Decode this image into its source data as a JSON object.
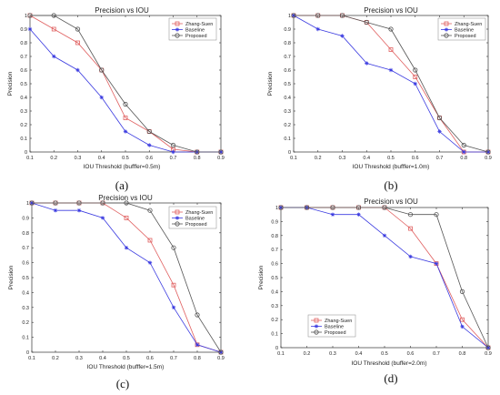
{
  "colors": {
    "zhang": "#e06060",
    "baseline": "#3a3ae0",
    "proposed": "#555555",
    "axis": "#333333"
  },
  "chart_data": [
    {
      "type": "line",
      "panel_label": "(a)",
      "title": "Precision vs IOU",
      "xlabel": "IOU Threshold (bufffer=0.5m)",
      "ylabel": "Precision",
      "xlim": [
        0.1,
        0.9
      ],
      "ylim": [
        0,
        1
      ],
      "xticks": [
        "0.1",
        "0.2",
        "0.3",
        "0.4",
        "0.5",
        "0.6",
        "0.7",
        "0.8",
        "0.9"
      ],
      "yticks": [
        "0",
        "0.1",
        "0.2",
        "0.3",
        "0.4",
        "0.5",
        "0.6",
        "0.7",
        "0.8",
        "0.9",
        "1"
      ],
      "legend_position": "top-right",
      "x": [
        0.1,
        0.2,
        0.3,
        0.4,
        0.5,
        0.6,
        0.7,
        0.8,
        0.9
      ],
      "series": [
        {
          "name": "Zhang-Suen",
          "marker": "square",
          "values": [
            1.0,
            0.9,
            0.8,
            0.6,
            0.25,
            0.15,
            0.02,
            0.0,
            0.0
          ]
        },
        {
          "name": "Baseline",
          "marker": "star",
          "values": [
            0.9,
            0.7,
            0.6,
            0.4,
            0.15,
            0.05,
            0.0,
            0.0,
            0.0
          ]
        },
        {
          "name": "Proposed",
          "marker": "circle",
          "values": [
            1.0,
            1.0,
            0.9,
            0.6,
            0.35,
            0.15,
            0.05,
            0.0,
            0.0
          ]
        }
      ]
    },
    {
      "type": "line",
      "panel_label": "(b)",
      "title": "Precision vs IOU",
      "xlabel": "IOU Threshold (bufffer=1.0m)",
      "ylabel": "Precision",
      "xlim": [
        0.1,
        0.9
      ],
      "ylim": [
        0,
        1
      ],
      "xticks": [
        "0.1",
        "0.2",
        "0.3",
        "0.4",
        "0.5",
        "0.6",
        "0.7",
        "0.8",
        "0.9"
      ],
      "yticks": [
        "0",
        "0.1",
        "0.2",
        "0.3",
        "0.4",
        "0.5",
        "0.6",
        "0.7",
        "0.8",
        "0.9",
        "1"
      ],
      "legend_position": "top-right",
      "x": [
        0.1,
        0.2,
        0.3,
        0.4,
        0.5,
        0.6,
        0.7,
        0.8,
        0.9
      ],
      "series": [
        {
          "name": "Zhang-Suen",
          "marker": "square",
          "values": [
            1.0,
            1.0,
            1.0,
            0.95,
            0.75,
            0.55,
            0.25,
            0.0,
            0.0
          ]
        },
        {
          "name": "Baseline",
          "marker": "star",
          "values": [
            1.0,
            0.9,
            0.85,
            0.65,
            0.6,
            0.5,
            0.15,
            0.0,
            0.0
          ]
        },
        {
          "name": "Proposed",
          "marker": "circle",
          "values": [
            1.0,
            1.0,
            1.0,
            0.95,
            0.9,
            0.6,
            0.25,
            0.05,
            0.0
          ]
        }
      ]
    },
    {
      "type": "line",
      "panel_label": "(c)",
      "title": "Precision vs IOU",
      "xlabel": "IOU Threshold (bufffer=1.5m)",
      "ylabel": "Precision",
      "xlim": [
        0.1,
        0.9
      ],
      "ylim": [
        0,
        1
      ],
      "xticks": [
        "0.1",
        "0.2",
        "0.3",
        "0.4",
        "0.5",
        "0.6",
        "0.7",
        "0.8",
        "0.9"
      ],
      "yticks": [
        "0",
        "0.1",
        "0.2",
        "0.3",
        "0.4",
        "0.5",
        "0.6",
        "0.7",
        "0.8",
        "0.9",
        "1"
      ],
      "legend_position": "top-right",
      "x": [
        0.1,
        0.2,
        0.3,
        0.4,
        0.5,
        0.6,
        0.7,
        0.8,
        0.9
      ],
      "series": [
        {
          "name": "Zhang-Suen",
          "marker": "square",
          "values": [
            1.0,
            1.0,
            1.0,
            1.0,
            0.9,
            0.75,
            0.45,
            0.05,
            0.0
          ]
        },
        {
          "name": "Baseline",
          "marker": "star",
          "values": [
            1.0,
            0.95,
            0.95,
            0.9,
            0.7,
            0.6,
            0.3,
            0.05,
            0.0
          ]
        },
        {
          "name": "Proposed",
          "marker": "circle",
          "values": [
            1.0,
            1.0,
            1.0,
            1.0,
            1.0,
            0.95,
            0.7,
            0.25,
            0.0
          ]
        }
      ]
    },
    {
      "type": "line",
      "panel_label": "(d)",
      "title": "Precision vs IOU",
      "xlabel": "IOU Threshold (buffer=2.0m)",
      "ylabel": "Precision",
      "xlim": [
        0.1,
        0.9
      ],
      "ylim": [
        0,
        1
      ],
      "xticks": [
        "0.1",
        "0.2",
        "0.3",
        "0.4",
        "0.5",
        "0.6",
        "0.7",
        "0.8",
        "0.9"
      ],
      "yticks": [
        "0",
        "0.1",
        "0.2",
        "0.3",
        "0.4",
        "0.5",
        "0.6",
        "0.7",
        "0.8",
        "0.9",
        "1"
      ],
      "legend_position": "bottom-left",
      "x": [
        0.1,
        0.2,
        0.3,
        0.4,
        0.5,
        0.6,
        0.7,
        0.8,
        0.9
      ],
      "series": [
        {
          "name": "Zhang-Suen",
          "marker": "square",
          "values": [
            1.0,
            1.0,
            1.0,
            1.0,
            1.0,
            0.85,
            0.6,
            0.2,
            0.0
          ]
        },
        {
          "name": "Baseline",
          "marker": "star",
          "values": [
            1.0,
            1.0,
            0.95,
            0.95,
            0.8,
            0.65,
            0.6,
            0.15,
            0.0
          ]
        },
        {
          "name": "Proposed",
          "marker": "circle",
          "values": [
            1.0,
            1.0,
            1.0,
            1.0,
            1.0,
            0.95,
            0.95,
            0.4,
            0.0
          ]
        }
      ]
    }
  ]
}
